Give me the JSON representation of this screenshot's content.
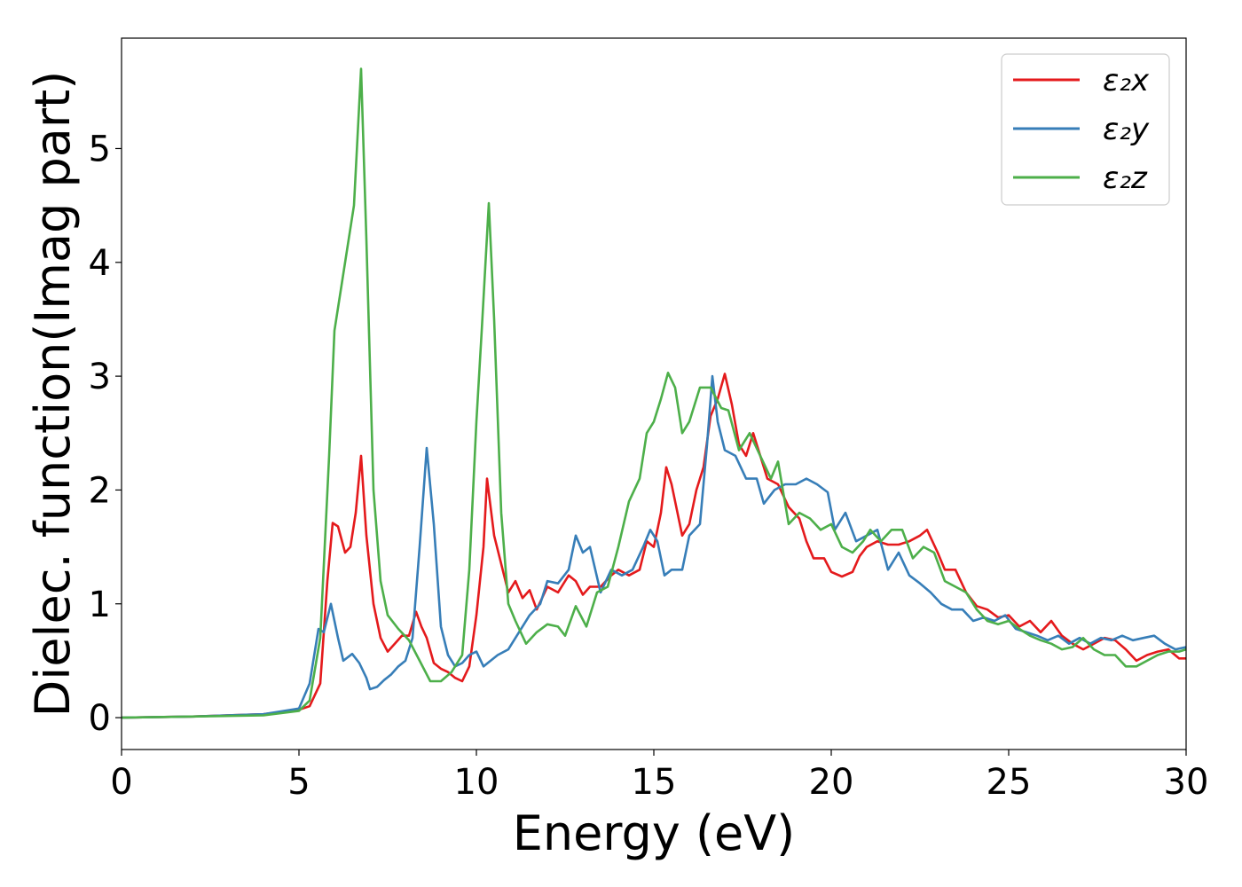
{
  "chart_data": {
    "type": "line",
    "title": "",
    "xlabel": "Energy (eV)",
    "ylabel": "Dielec. function(Imag part)",
    "xlim": [
      0,
      30
    ],
    "ylim": [
      -0.28,
      5.97
    ],
    "xticks": [
      0,
      5,
      10,
      15,
      20,
      25,
      30
    ],
    "yticks": [
      0,
      1,
      2,
      3,
      4,
      5
    ],
    "grid": false,
    "legend_position": "top-right",
    "series": [
      {
        "name": "ε₂x",
        "color": "#e41a1c",
        "points": [
          [
            0,
            0
          ],
          [
            2,
            0.01
          ],
          [
            4,
            0.03
          ],
          [
            5,
            0.07
          ],
          [
            5.3,
            0.1
          ],
          [
            5.6,
            0.3
          ],
          [
            5.8,
            1.2
          ],
          [
            5.95,
            1.71
          ],
          [
            6.1,
            1.68
          ],
          [
            6.3,
            1.45
          ],
          [
            6.45,
            1.5
          ],
          [
            6.6,
            1.8
          ],
          [
            6.75,
            2.3
          ],
          [
            6.9,
            1.6
          ],
          [
            7.1,
            1.0
          ],
          [
            7.3,
            0.7
          ],
          [
            7.5,
            0.58
          ],
          [
            7.7,
            0.65
          ],
          [
            7.9,
            0.72
          ],
          [
            8.1,
            0.72
          ],
          [
            8.3,
            0.93
          ],
          [
            8.45,
            0.8
          ],
          [
            8.6,
            0.7
          ],
          [
            8.8,
            0.48
          ],
          [
            9.0,
            0.43
          ],
          [
            9.2,
            0.4
          ],
          [
            9.4,
            0.35
          ],
          [
            9.6,
            0.32
          ],
          [
            9.8,
            0.45
          ],
          [
            10.0,
            0.9
          ],
          [
            10.2,
            1.5
          ],
          [
            10.3,
            2.1
          ],
          [
            10.5,
            1.6
          ],
          [
            10.7,
            1.35
          ],
          [
            10.9,
            1.1
          ],
          [
            11.1,
            1.2
          ],
          [
            11.3,
            1.05
          ],
          [
            11.5,
            1.12
          ],
          [
            11.7,
            0.95
          ],
          [
            12.0,
            1.15
          ],
          [
            12.3,
            1.1
          ],
          [
            12.6,
            1.25
          ],
          [
            12.8,
            1.2
          ],
          [
            13.0,
            1.08
          ],
          [
            13.2,
            1.15
          ],
          [
            13.5,
            1.15
          ],
          [
            13.8,
            1.25
          ],
          [
            14.0,
            1.3
          ],
          [
            14.3,
            1.25
          ],
          [
            14.6,
            1.3
          ],
          [
            14.8,
            1.55
          ],
          [
            15.0,
            1.5
          ],
          [
            15.2,
            1.8
          ],
          [
            15.35,
            2.2
          ],
          [
            15.5,
            2.05
          ],
          [
            15.8,
            1.6
          ],
          [
            16.0,
            1.7
          ],
          [
            16.2,
            2.0
          ],
          [
            16.4,
            2.2
          ],
          [
            16.6,
            2.65
          ],
          [
            16.8,
            2.8
          ],
          [
            17.0,
            3.02
          ],
          [
            17.2,
            2.75
          ],
          [
            17.4,
            2.4
          ],
          [
            17.6,
            2.3
          ],
          [
            17.8,
            2.5
          ],
          [
            18.0,
            2.3
          ],
          [
            18.2,
            2.1
          ],
          [
            18.5,
            2.05
          ],
          [
            18.8,
            1.85
          ],
          [
            19.1,
            1.75
          ],
          [
            19.3,
            1.55
          ],
          [
            19.5,
            1.4
          ],
          [
            19.8,
            1.4
          ],
          [
            20.0,
            1.28
          ],
          [
            20.3,
            1.24
          ],
          [
            20.6,
            1.28
          ],
          [
            20.8,
            1.42
          ],
          [
            21.0,
            1.5
          ],
          [
            21.3,
            1.55
          ],
          [
            21.6,
            1.52
          ],
          [
            21.9,
            1.52
          ],
          [
            22.2,
            1.55
          ],
          [
            22.5,
            1.6
          ],
          [
            22.7,
            1.65
          ],
          [
            23.0,
            1.45
          ],
          [
            23.2,
            1.3
          ],
          [
            23.5,
            1.3
          ],
          [
            23.8,
            1.1
          ],
          [
            24.1,
            0.98
          ],
          [
            24.4,
            0.95
          ],
          [
            24.7,
            0.88
          ],
          [
            25.0,
            0.9
          ],
          [
            25.3,
            0.8
          ],
          [
            25.6,
            0.85
          ],
          [
            25.9,
            0.75
          ],
          [
            26.2,
            0.85
          ],
          [
            26.5,
            0.72
          ],
          [
            26.8,
            0.65
          ],
          [
            27.1,
            0.6
          ],
          [
            27.4,
            0.65
          ],
          [
            27.7,
            0.7
          ],
          [
            28.0,
            0.68
          ],
          [
            28.3,
            0.6
          ],
          [
            28.6,
            0.5
          ],
          [
            28.9,
            0.55
          ],
          [
            29.2,
            0.58
          ],
          [
            29.5,
            0.6
          ],
          [
            29.8,
            0.52
          ],
          [
            30.0,
            0.52
          ]
        ]
      },
      {
        "name": "ε₂y",
        "color": "#377eb8",
        "points": [
          [
            0,
            0
          ],
          [
            2,
            0.01
          ],
          [
            4,
            0.03
          ],
          [
            5,
            0.08
          ],
          [
            5.3,
            0.3
          ],
          [
            5.55,
            0.78
          ],
          [
            5.7,
            0.75
          ],
          [
            5.9,
            1.0
          ],
          [
            6.1,
            0.7
          ],
          [
            6.25,
            0.5
          ],
          [
            6.5,
            0.56
          ],
          [
            6.7,
            0.48
          ],
          [
            6.9,
            0.35
          ],
          [
            7.0,
            0.25
          ],
          [
            7.2,
            0.27
          ],
          [
            7.4,
            0.33
          ],
          [
            7.6,
            0.38
          ],
          [
            7.8,
            0.45
          ],
          [
            8.0,
            0.5
          ],
          [
            8.2,
            0.7
          ],
          [
            8.4,
            1.5
          ],
          [
            8.6,
            2.37
          ],
          [
            8.8,
            1.7
          ],
          [
            9.0,
            0.8
          ],
          [
            9.2,
            0.55
          ],
          [
            9.4,
            0.45
          ],
          [
            9.6,
            0.48
          ],
          [
            9.8,
            0.55
          ],
          [
            10.0,
            0.58
          ],
          [
            10.2,
            0.45
          ],
          [
            10.4,
            0.5
          ],
          [
            10.6,
            0.55
          ],
          [
            10.9,
            0.6
          ],
          [
            11.2,
            0.75
          ],
          [
            11.5,
            0.9
          ],
          [
            11.8,
            1.0
          ],
          [
            12.0,
            1.2
          ],
          [
            12.3,
            1.18
          ],
          [
            12.6,
            1.3
          ],
          [
            12.8,
            1.6
          ],
          [
            13.0,
            1.45
          ],
          [
            13.2,
            1.5
          ],
          [
            13.5,
            1.1
          ],
          [
            13.8,
            1.3
          ],
          [
            14.1,
            1.25
          ],
          [
            14.4,
            1.3
          ],
          [
            14.7,
            1.5
          ],
          [
            14.9,
            1.65
          ],
          [
            15.1,
            1.55
          ],
          [
            15.3,
            1.25
          ],
          [
            15.5,
            1.3
          ],
          [
            15.8,
            1.3
          ],
          [
            16.0,
            1.6
          ],
          [
            16.3,
            1.7
          ],
          [
            16.5,
            2.4
          ],
          [
            16.65,
            3.0
          ],
          [
            16.8,
            2.6
          ],
          [
            17.0,
            2.35
          ],
          [
            17.3,
            2.3
          ],
          [
            17.6,
            2.1
          ],
          [
            17.9,
            2.1
          ],
          [
            18.1,
            1.88
          ],
          [
            18.4,
            2.0
          ],
          [
            18.7,
            2.05
          ],
          [
            19.0,
            2.05
          ],
          [
            19.3,
            2.1
          ],
          [
            19.6,
            2.05
          ],
          [
            19.9,
            1.98
          ],
          [
            20.1,
            1.65
          ],
          [
            20.4,
            1.8
          ],
          [
            20.7,
            1.55
          ],
          [
            21.0,
            1.6
          ],
          [
            21.3,
            1.65
          ],
          [
            21.6,
            1.3
          ],
          [
            21.9,
            1.45
          ],
          [
            22.2,
            1.25
          ],
          [
            22.5,
            1.18
          ],
          [
            22.8,
            1.1
          ],
          [
            23.1,
            1.0
          ],
          [
            23.4,
            0.95
          ],
          [
            23.7,
            0.95
          ],
          [
            24.0,
            0.85
          ],
          [
            24.3,
            0.88
          ],
          [
            24.6,
            0.85
          ],
          [
            24.9,
            0.9
          ],
          [
            25.2,
            0.78
          ],
          [
            25.5,
            0.75
          ],
          [
            25.8,
            0.72
          ],
          [
            26.1,
            0.68
          ],
          [
            26.4,
            0.72
          ],
          [
            26.7,
            0.65
          ],
          [
            27.0,
            0.7
          ],
          [
            27.3,
            0.65
          ],
          [
            27.6,
            0.7
          ],
          [
            27.9,
            0.68
          ],
          [
            28.2,
            0.72
          ],
          [
            28.5,
            0.68
          ],
          [
            28.8,
            0.7
          ],
          [
            29.1,
            0.72
          ],
          [
            29.4,
            0.65
          ],
          [
            29.7,
            0.6
          ],
          [
            30.0,
            0.62
          ]
        ]
      },
      {
        "name": "ε₂z",
        "color": "#4daf4a",
        "points": [
          [
            0,
            0
          ],
          [
            2,
            0.01
          ],
          [
            4,
            0.02
          ],
          [
            5,
            0.06
          ],
          [
            5.3,
            0.15
          ],
          [
            5.6,
            0.7
          ],
          [
            5.85,
            2.3
          ],
          [
            6.0,
            3.4
          ],
          [
            6.2,
            3.8
          ],
          [
            6.4,
            4.2
          ],
          [
            6.55,
            4.5
          ],
          [
            6.75,
            5.7
          ],
          [
            6.9,
            4.2
          ],
          [
            7.1,
            2.0
          ],
          [
            7.3,
            1.2
          ],
          [
            7.5,
            0.9
          ],
          [
            7.8,
            0.78
          ],
          [
            8.1,
            0.68
          ],
          [
            8.4,
            0.5
          ],
          [
            8.7,
            0.32
          ],
          [
            9.0,
            0.32
          ],
          [
            9.3,
            0.4
          ],
          [
            9.6,
            0.55
          ],
          [
            9.8,
            1.3
          ],
          [
            10.0,
            2.6
          ],
          [
            10.15,
            3.4
          ],
          [
            10.35,
            4.52
          ],
          [
            10.5,
            3.5
          ],
          [
            10.7,
            1.8
          ],
          [
            10.9,
            1.0
          ],
          [
            11.1,
            0.85
          ],
          [
            11.4,
            0.65
          ],
          [
            11.7,
            0.75
          ],
          [
            12.0,
            0.82
          ],
          [
            12.3,
            0.8
          ],
          [
            12.5,
            0.72
          ],
          [
            12.8,
            0.98
          ],
          [
            13.1,
            0.8
          ],
          [
            13.4,
            1.1
          ],
          [
            13.7,
            1.15
          ],
          [
            14.0,
            1.5
          ],
          [
            14.3,
            1.9
          ],
          [
            14.6,
            2.1
          ],
          [
            14.8,
            2.5
          ],
          [
            15.0,
            2.6
          ],
          [
            15.2,
            2.8
          ],
          [
            15.4,
            3.03
          ],
          [
            15.6,
            2.9
          ],
          [
            15.8,
            2.5
          ],
          [
            16.0,
            2.6
          ],
          [
            16.3,
            2.9
          ],
          [
            16.6,
            2.9
          ],
          [
            16.9,
            2.72
          ],
          [
            17.1,
            2.7
          ],
          [
            17.4,
            2.35
          ],
          [
            17.7,
            2.5
          ],
          [
            18.0,
            2.3
          ],
          [
            18.3,
            2.1
          ],
          [
            18.5,
            2.25
          ],
          [
            18.8,
            1.7
          ],
          [
            19.1,
            1.8
          ],
          [
            19.4,
            1.75
          ],
          [
            19.7,
            1.65
          ],
          [
            20.0,
            1.7
          ],
          [
            20.3,
            1.5
          ],
          [
            20.6,
            1.45
          ],
          [
            20.9,
            1.55
          ],
          [
            21.1,
            1.65
          ],
          [
            21.4,
            1.55
          ],
          [
            21.7,
            1.65
          ],
          [
            22.0,
            1.65
          ],
          [
            22.3,
            1.4
          ],
          [
            22.6,
            1.5
          ],
          [
            22.9,
            1.45
          ],
          [
            23.2,
            1.2
          ],
          [
            23.5,
            1.15
          ],
          [
            23.8,
            1.1
          ],
          [
            24.1,
            0.95
          ],
          [
            24.4,
            0.85
          ],
          [
            24.7,
            0.82
          ],
          [
            25.0,
            0.85
          ],
          [
            25.3,
            0.78
          ],
          [
            25.6,
            0.72
          ],
          [
            25.9,
            0.68
          ],
          [
            26.2,
            0.65
          ],
          [
            26.5,
            0.6
          ],
          [
            26.8,
            0.62
          ],
          [
            27.1,
            0.7
          ],
          [
            27.4,
            0.6
          ],
          [
            27.7,
            0.55
          ],
          [
            28.0,
            0.55
          ],
          [
            28.3,
            0.45
          ],
          [
            28.6,
            0.45
          ],
          [
            28.9,
            0.5
          ],
          [
            29.2,
            0.55
          ],
          [
            29.5,
            0.58
          ],
          [
            29.8,
            0.58
          ],
          [
            30.0,
            0.6
          ]
        ]
      }
    ]
  }
}
